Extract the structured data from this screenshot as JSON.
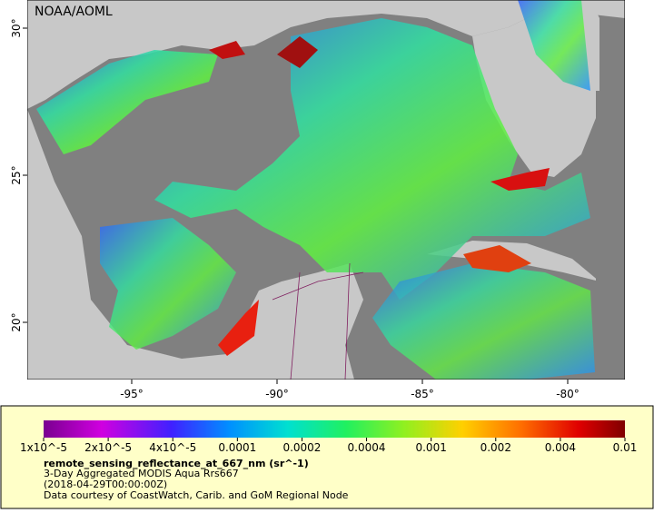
{
  "map": {
    "credit": "NOAA/AOML",
    "lon_ticks": [
      "-95°",
      "-90°",
      "-85°",
      "-80°"
    ],
    "lat_ticks": [
      "30°",
      "25°",
      "20°"
    ]
  },
  "legend": {
    "ticks": [
      "1x10^-5",
      "2x10^-5",
      "4x10^-5",
      "0.0001",
      "0.0002",
      "0.0004",
      "0.001",
      "0.002",
      "0.004",
      "0.01"
    ],
    "title": "remote_sensing_reflectance_at_667_nm (sr^-1)",
    "lines": [
      "3-Day Aggregated MODIS Aqua Rrs667",
      "(2018-04-29T00:00:00Z)",
      "Data courtesy of CoastWatch, Carib. and GoM Regional Node"
    ]
  }
}
